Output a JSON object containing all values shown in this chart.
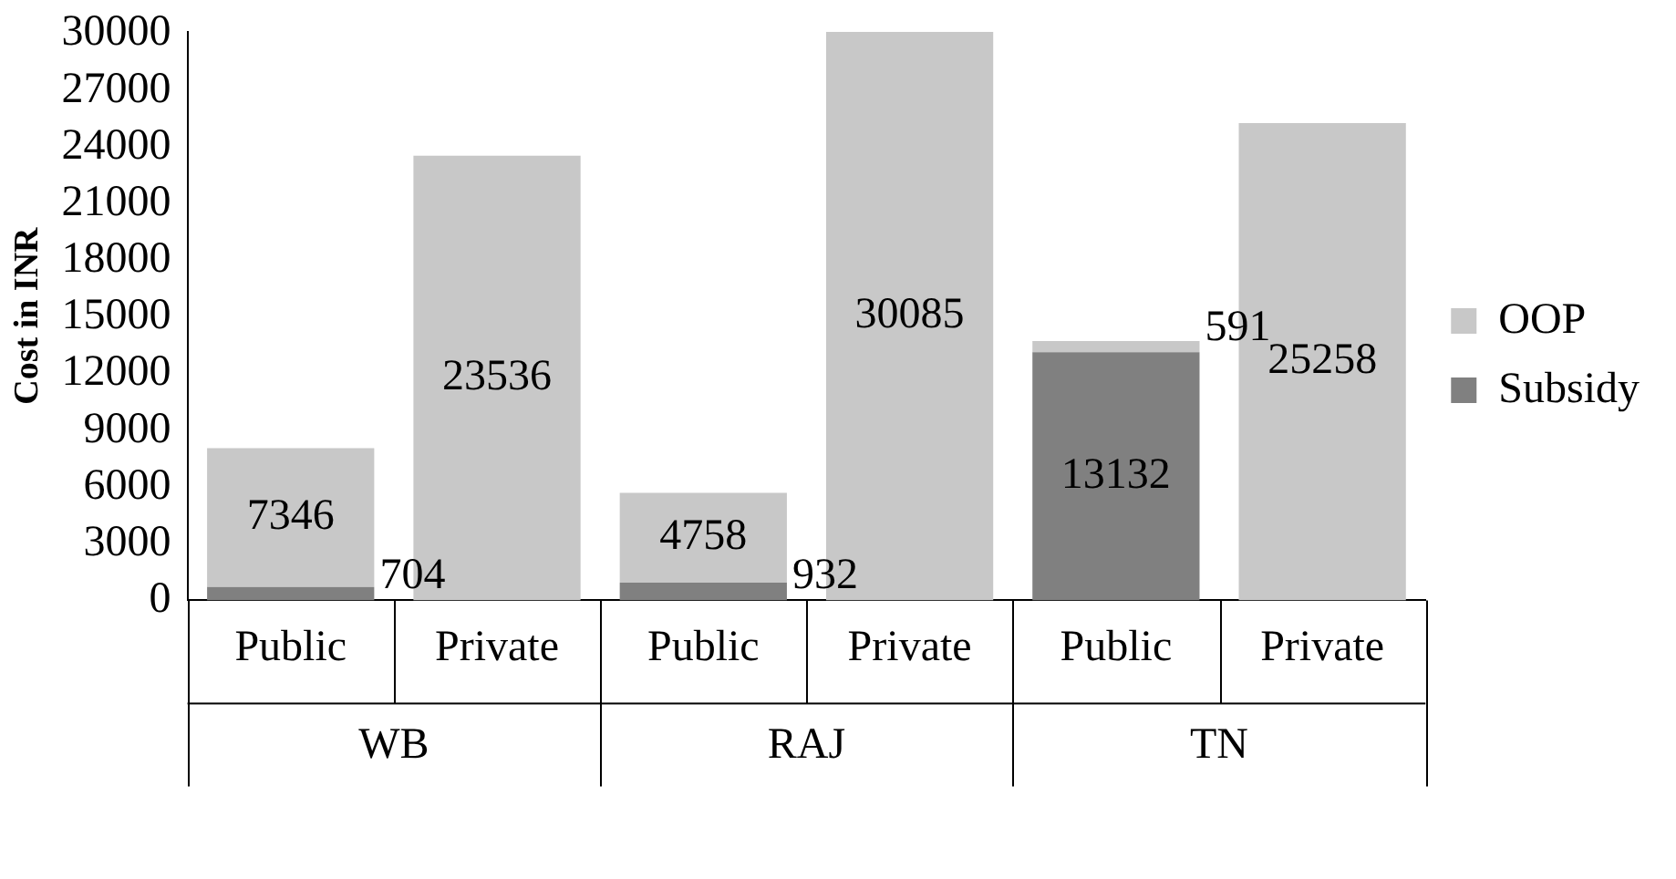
{
  "chart_data": {
    "type": "bar",
    "stacked": true,
    "ylabel": "Cost in INR",
    "categories": [
      "Public",
      "Private",
      "Public",
      "Private",
      "Public",
      "Private"
    ],
    "annotations": [
      "WB",
      "RAJ",
      "TN"
    ],
    "series": [
      {
        "name": "Subsidy",
        "color": "#808080",
        "values": [
          704,
          null,
          932,
          null,
          13132,
          null
        ]
      },
      {
        "name": "OOP",
        "color": "#c8c8c8",
        "values": [
          7346,
          23536,
          4758,
          30085,
          591,
          25258
        ]
      }
    ],
    "ylim": [
      0,
      30100
    ],
    "yticks": [
      0,
      3000,
      6000,
      9000,
      12000,
      15000,
      18000,
      21000,
      24000,
      27000,
      30000
    ],
    "data_labels": true,
    "grid": false,
    "legend": "right"
  }
}
